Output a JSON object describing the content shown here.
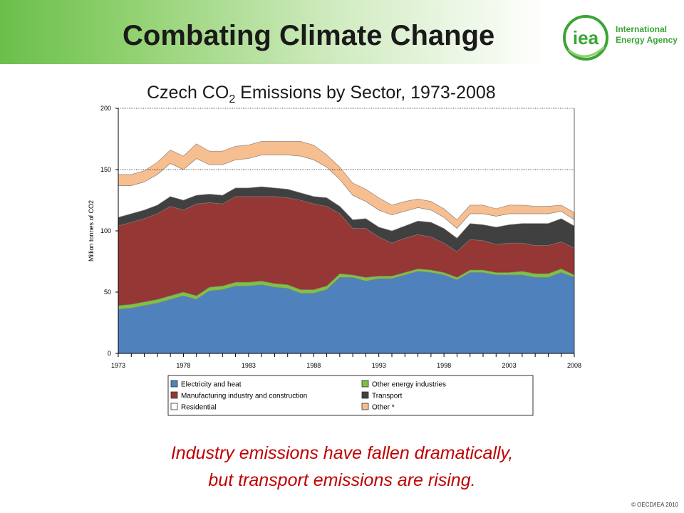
{
  "header": {
    "title": "Combating Climate Change",
    "logo_word": "iea",
    "logo_lines": [
      "International",
      "Energy Agency"
    ],
    "accent": "#6abf4b"
  },
  "chart_data": {
    "type": "area",
    "stacked": true,
    "title_main": "Czech CO",
    "title_sub": "2",
    "title_rest": " Emissions by Sector, 1973-2008",
    "ylabel": "Million tonnes of CO2",
    "xlabel": "",
    "ylim": [
      0,
      200
    ],
    "yticks": [
      0,
      50,
      100,
      150,
      200
    ],
    "xticks": [
      1973,
      1978,
      1983,
      1988,
      1993,
      1998,
      2003,
      2008
    ],
    "x": [
      1973,
      1974,
      1975,
      1976,
      1977,
      1978,
      1979,
      1980,
      1981,
      1982,
      1983,
      1984,
      1985,
      1986,
      1987,
      1988,
      1989,
      1990,
      1991,
      1992,
      1993,
      1994,
      1995,
      1996,
      1997,
      1998,
      1999,
      2000,
      2001,
      2002,
      2003,
      2004,
      2005,
      2006,
      2007,
      2008
    ],
    "grid": "dotted lines at 150 and 200",
    "legend_position": "bottom",
    "series": [
      {
        "name": "Electricity and heat",
        "color": "#4f81bd",
        "values": [
          36,
          37,
          39,
          41,
          44,
          47,
          44,
          51,
          52,
          55,
          55,
          56,
          54,
          53,
          49,
          49,
          52,
          62,
          62,
          59,
          61,
          61,
          64,
          67,
          66,
          64,
          60,
          66,
          66,
          64,
          64,
          64,
          62,
          62,
          66,
          62
        ]
      },
      {
        "name": "Other energy industries",
        "color": "#7dc242",
        "values": [
          3,
          3,
          3,
          3,
          3,
          3,
          3,
          3,
          3,
          3,
          3,
          3,
          3,
          3,
          3,
          3,
          3,
          3,
          2,
          3,
          2,
          2,
          2,
          2,
          2,
          2,
          2,
          2,
          2,
          2,
          2,
          3,
          3,
          3,
          3,
          2
        ]
      },
      {
        "name": "Manufacturing industry and construction",
        "color": "#953735",
        "values": [
          65,
          67,
          68,
          70,
          73,
          67,
          75,
          69,
          67,
          70,
          70,
          69,
          71,
          71,
          73,
          70,
          65,
          49,
          38,
          40,
          32,
          27,
          28,
          28,
          27,
          24,
          21,
          25,
          24,
          23,
          24,
          23,
          23,
          23,
          22,
          22
        ]
      },
      {
        "name": "Transport",
        "color": "#404040",
        "values": [
          7,
          7,
          7,
          7,
          8,
          8,
          7,
          7,
          7,
          7,
          7,
          8,
          7,
          7,
          6,
          6,
          7,
          6,
          7,
          8,
          8,
          10,
          10,
          11,
          12,
          12,
          11,
          13,
          13,
          14,
          15,
          16,
          18,
          18,
          19,
          18
        ]
      },
      {
        "name": "Residential",
        "color": "#ffffff",
        "values": [
          26,
          23,
          23,
          25,
          27,
          25,
          30,
          24,
          25,
          23,
          24,
          26,
          27,
          28,
          30,
          30,
          25,
          22,
          20,
          14,
          14,
          13,
          12,
          11,
          10,
          9,
          8,
          8,
          9,
          9,
          9,
          8,
          8,
          8,
          6,
          5
        ]
      },
      {
        "name": "Other *",
        "color": "#f7be8f",
        "values": [
          9,
          9,
          9,
          10,
          11,
          11,
          12,
          11,
          11,
          11,
          11,
          11,
          11,
          11,
          12,
          12,
          10,
          10,
          10,
          10,
          10,
          8,
          8,
          7,
          7,
          7,
          7,
          7,
          7,
          6,
          7,
          7,
          6,
          6,
          5,
          6
        ]
      }
    ]
  },
  "caption": {
    "line1": "Industry emissions have fallen dramatically,",
    "line2": "but transport emissions are rising."
  },
  "footer": {
    "copyright": "© OECD/IEA 2010"
  }
}
